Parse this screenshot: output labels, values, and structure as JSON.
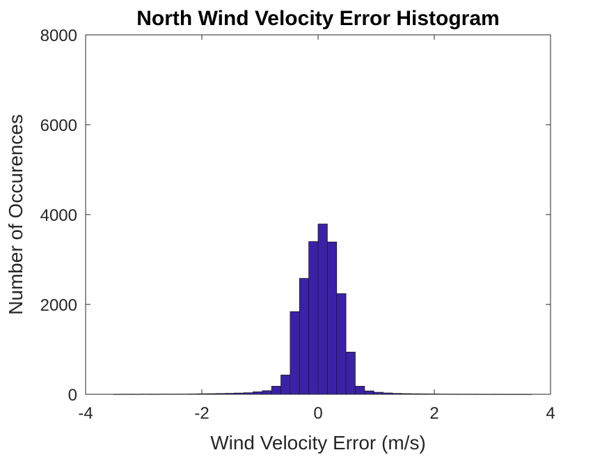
{
  "chart_data": {
    "type": "bar",
    "title": "North Wind Velocity Error Histogram",
    "xlabel": "Wind Velocity Error (m/s)",
    "ylabel": "Number of Occurences",
    "xlim": [
      -4,
      4
    ],
    "ylim": [
      0,
      8000
    ],
    "xticks": [
      "-4",
      "-2",
      "0",
      "2",
      "4"
    ],
    "yticks": [
      "0",
      "2000",
      "4000",
      "6000",
      "8000"
    ],
    "grid": false,
    "legend": "none",
    "bar_color": "#3a22a8",
    "bar_edge_color": "#1a1a1a",
    "bin_width": 0.16,
    "bins": [
      {
        "start": -3.52,
        "value": 3
      },
      {
        "start": -3.36,
        "value": 4
      },
      {
        "start": -3.2,
        "value": 3
      },
      {
        "start": -3.04,
        "value": 5
      },
      {
        "start": -2.88,
        "value": 4
      },
      {
        "start": -2.72,
        "value": 6
      },
      {
        "start": -2.56,
        "value": 5
      },
      {
        "start": -2.4,
        "value": 6
      },
      {
        "start": -2.24,
        "value": 8
      },
      {
        "start": -2.08,
        "value": 12
      },
      {
        "start": -1.92,
        "value": 14
      },
      {
        "start": -1.76,
        "value": 18
      },
      {
        "start": -1.6,
        "value": 22
      },
      {
        "start": -1.44,
        "value": 28
      },
      {
        "start": -1.28,
        "value": 35
      },
      {
        "start": -1.12,
        "value": 55
      },
      {
        "start": -0.96,
        "value": 80
      },
      {
        "start": -0.8,
        "value": 180
      },
      {
        "start": -0.64,
        "value": 430
      },
      {
        "start": -0.48,
        "value": 1840
      },
      {
        "start": -0.32,
        "value": 2580
      },
      {
        "start": -0.16,
        "value": 3400
      },
      {
        "start": 0.0,
        "value": 3790
      },
      {
        "start": 0.16,
        "value": 3390
      },
      {
        "start": 0.32,
        "value": 2240
      },
      {
        "start": 0.48,
        "value": 940
      },
      {
        "start": 0.64,
        "value": 180
      },
      {
        "start": 0.8,
        "value": 75
      },
      {
        "start": 0.96,
        "value": 45
      },
      {
        "start": 1.12,
        "value": 30
      },
      {
        "start": 1.28,
        "value": 20
      },
      {
        "start": 1.44,
        "value": 15
      },
      {
        "start": 1.6,
        "value": 12
      },
      {
        "start": 1.76,
        "value": 10
      },
      {
        "start": 1.92,
        "value": 8
      },
      {
        "start": 2.08,
        "value": 6
      },
      {
        "start": 2.24,
        "value": 5
      },
      {
        "start": 2.4,
        "value": 4
      },
      {
        "start": 2.56,
        "value": 4
      },
      {
        "start": 2.72,
        "value": 3
      },
      {
        "start": 2.88,
        "value": 3
      },
      {
        "start": 3.04,
        "value": 3
      },
      {
        "start": 3.2,
        "value": 2
      },
      {
        "start": 3.36,
        "value": 2
      },
      {
        "start": 3.52,
        "value": 2
      }
    ]
  }
}
